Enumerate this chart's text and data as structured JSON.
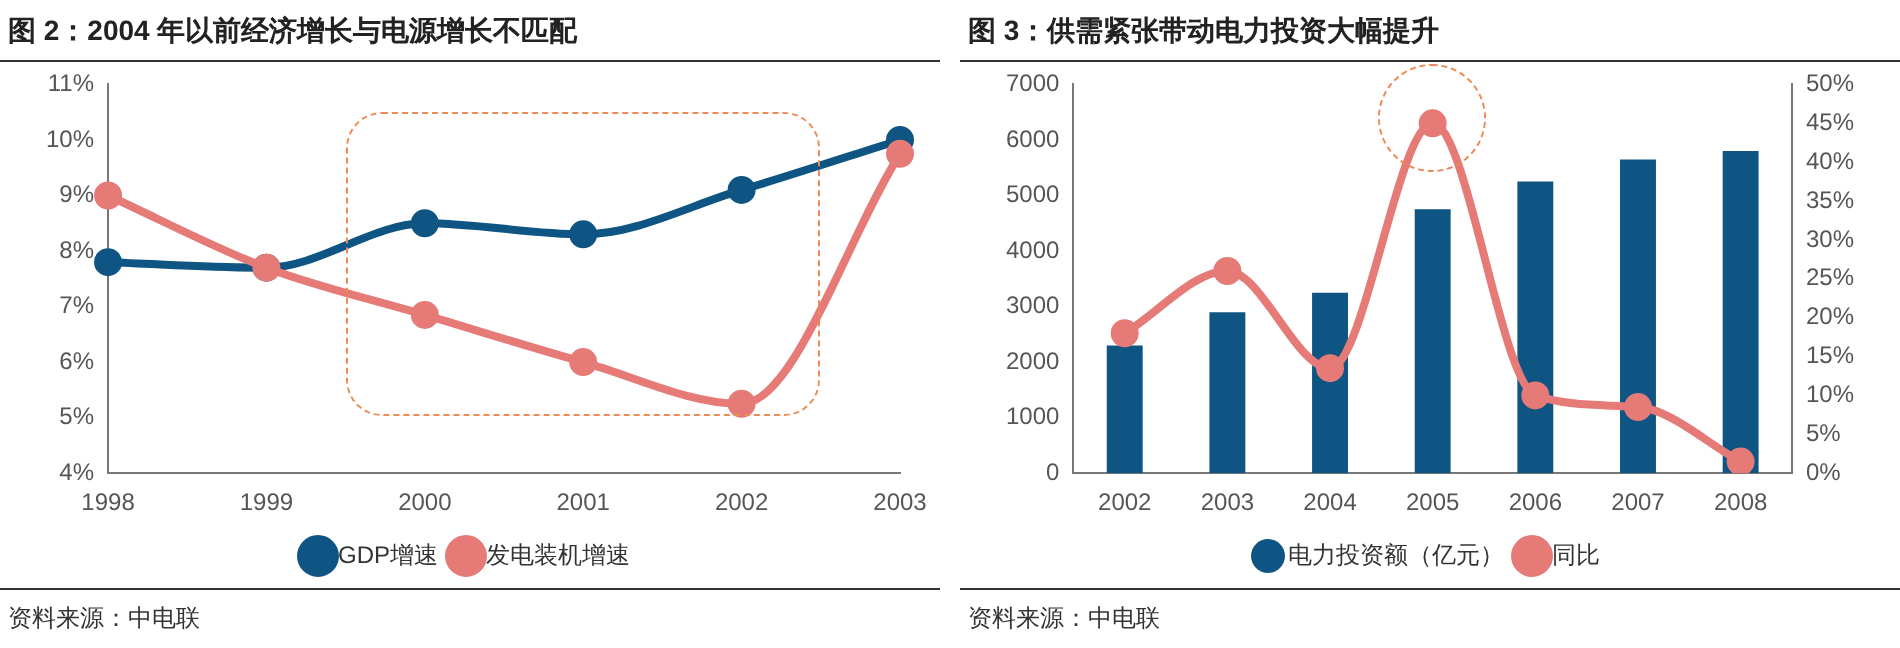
{
  "chart_data": [
    {
      "type": "line",
      "title": "图 2：2004 年以前经济增长与电源增长不匹配",
      "categories": [
        "1998",
        "1999",
        "2000",
        "2001",
        "2002",
        "2003"
      ],
      "series": [
        {
          "name": "GDP增速",
          "color": "#0e5583",
          "values": [
            7.8,
            7.7,
            8.5,
            8.3,
            9.1,
            10.0
          ]
        },
        {
          "name": "发电装机增速",
          "color": "#e57a77",
          "values": [
            9.0,
            7.7,
            6.85,
            6.0,
            5.25,
            9.75
          ]
        }
      ],
      "ylim": [
        4,
        11
      ],
      "yticks": [
        {
          "value": 4,
          "label": "4%"
        },
        {
          "value": 5,
          "label": "5%"
        },
        {
          "value": 6,
          "label": "6%"
        },
        {
          "value": 7,
          "label": "7%"
        },
        {
          "value": 8,
          "label": "8%"
        },
        {
          "value": 9,
          "label": "9%"
        },
        {
          "value": 10,
          "label": "10%"
        },
        {
          "value": 11,
          "label": "11%"
        }
      ],
      "grid": false,
      "legend": "bottom",
      "marker": "circle",
      "annotations": [
        "资料来源：中电联"
      ]
    },
    {
      "type": "bar",
      "title": "图 3：供需紧张带动电力投资大幅提升",
      "categories": [
        "2002",
        "2003",
        "2004",
        "2005",
        "2006",
        "2007",
        "2008"
      ],
      "series": [
        {
          "name": "电力投资额（亿元）",
          "color": "#0e5583",
          "values": [
            2300,
            2900,
            3250,
            4750,
            5250,
            5650,
            5800
          ]
        },
        {
          "name": "同比",
          "type": "line",
          "axis": "y2",
          "color": "#e57a77",
          "values": [
            18,
            26,
            13.5,
            45,
            10,
            8.5,
            1.5
          ]
        }
      ],
      "ylim": [
        0,
        7000
      ],
      "yticks": [
        0,
        1000,
        2000,
        3000,
        4000,
        5000,
        6000,
        7000
      ],
      "y2lim": [
        0,
        50
      ],
      "y2ticks": [
        {
          "value": 0,
          "label": "0%"
        },
        {
          "value": 5,
          "label": "5%"
        },
        {
          "value": 10,
          "label": "10%"
        },
        {
          "value": 15,
          "label": "15%"
        },
        {
          "value": 20,
          "label": "20%"
        },
        {
          "value": 25,
          "label": "25%"
        },
        {
          "value": 30,
          "label": "30%"
        },
        {
          "value": 35,
          "label": "35%"
        },
        {
          "value": 40,
          "label": "40%"
        },
        {
          "value": 45,
          "label": "45%"
        },
        {
          "value": 50,
          "label": "50%"
        }
      ],
      "grid": false,
      "legend": "bottom",
      "marker": "circle",
      "annotations": [
        "资料来源：中电联"
      ]
    }
  ]
}
